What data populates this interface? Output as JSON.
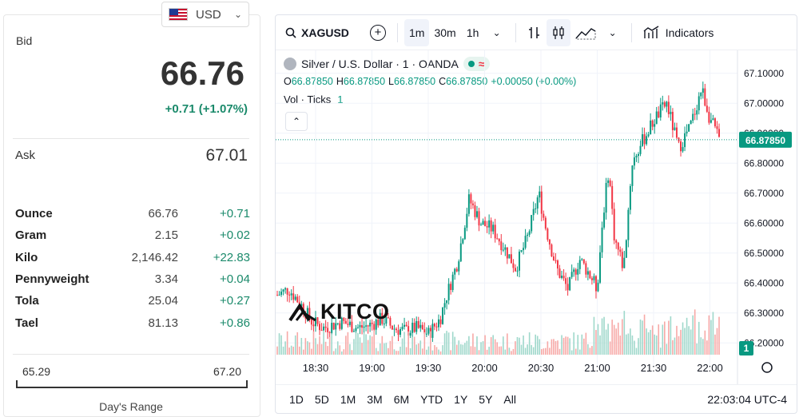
{
  "currency": {
    "label": "USD"
  },
  "bid": {
    "label": "Bid",
    "price": "66.76",
    "change": "+0.71 (+1.07%)"
  },
  "ask": {
    "label": "Ask",
    "price": "67.01"
  },
  "units": [
    {
      "name": "Ounce",
      "value": "66.76",
      "change": "+0.71"
    },
    {
      "name": "Gram",
      "value": "2.15",
      "change": "+0.02"
    },
    {
      "name": "Kilo",
      "value": "2,146.42",
      "change": "+22.83"
    },
    {
      "name": "Pennyweight",
      "value": "3.34",
      "change": "+0.04"
    },
    {
      "name": "Tola",
      "value": "25.04",
      "change": "+0.27"
    },
    {
      "name": "Tael",
      "value": "81.13",
      "change": "+0.86"
    }
  ],
  "days_range": {
    "low": "65.29",
    "high": "67.20",
    "label": "Day's Range"
  },
  "toolbar": {
    "symbol": "XAGUSD",
    "intervals": [
      "1m",
      "30m",
      "1h"
    ],
    "active_interval": "1m",
    "indicators_label": "Indicators"
  },
  "legend": {
    "title": "Silver / U.S. Dollar · 1 · OANDA",
    "open": "66.87850",
    "high": "66.87850",
    "low": "66.87850",
    "close": "66.87850",
    "change": "+0.00050 (+0.00%)",
    "vol_label": "Vol · Ticks",
    "vol_value": "1"
  },
  "bottom": {
    "ranges": [
      "1D",
      "5D",
      "1M",
      "3M",
      "6M",
      "YTD",
      "1Y",
      "5Y",
      "All"
    ],
    "clock": "22:03:04 UTC-4"
  },
  "logo": {
    "text": "KITCO"
  },
  "colors": {
    "up": "#089981",
    "down": "#f23645",
    "change_green": "#1b8a6b"
  },
  "chart_data": {
    "type": "candlestick",
    "y_ticks": [
      "67.10000",
      "67.00000",
      "66.90000",
      "66.80000",
      "66.70000",
      "66.60000",
      "66.50000",
      "66.40000",
      "66.30000",
      "66.20000"
    ],
    "x_ticks": [
      "18:30",
      "19:00",
      "19:30",
      "20:00",
      "20:30",
      "21:00",
      "21:30",
      "22:00"
    ],
    "ylim": [
      66.15,
      67.15
    ],
    "last_price_label": "66.87850",
    "last_price": 66.8785,
    "volume_label": "1",
    "close_path": [
      [
        18.2,
        66.36
      ],
      [
        18.3,
        66.38
      ],
      [
        18.4,
        66.33
      ],
      [
        18.5,
        66.27
      ],
      [
        18.6,
        66.25
      ],
      [
        18.75,
        66.27
      ],
      [
        18.9,
        66.25
      ],
      [
        19.0,
        66.26
      ],
      [
        19.1,
        66.28
      ],
      [
        19.2,
        66.25
      ],
      [
        19.3,
        66.24
      ],
      [
        19.4,
        66.25
      ],
      [
        19.5,
        66.23
      ],
      [
        19.6,
        66.28
      ],
      [
        19.65,
        66.35
      ],
      [
        19.75,
        66.47
      ],
      [
        19.85,
        66.68
      ],
      [
        19.95,
        66.6
      ],
      [
        20.05,
        66.58
      ],
      [
        20.15,
        66.52
      ],
      [
        20.25,
        66.45
      ],
      [
        20.35,
        66.55
      ],
      [
        20.45,
        66.7
      ],
      [
        20.5,
        66.6
      ],
      [
        20.6,
        66.45
      ],
      [
        20.7,
        66.38
      ],
      [
        20.8,
        66.48
      ],
      [
        20.9,
        66.42
      ],
      [
        20.95,
        66.38
      ],
      [
        21.0,
        66.62
      ],
      [
        21.05,
        66.78
      ],
      [
        21.1,
        66.55
      ],
      [
        21.18,
        66.45
      ],
      [
        21.25,
        66.8
      ],
      [
        21.35,
        66.88
      ],
      [
        21.45,
        66.95
      ],
      [
        21.55,
        67.0
      ],
      [
        21.65,
        66.85
      ],
      [
        21.75,
        66.92
      ],
      [
        21.85,
        67.05
      ],
      [
        21.92,
        66.95
      ],
      [
        22.0,
        66.88
      ]
    ]
  }
}
